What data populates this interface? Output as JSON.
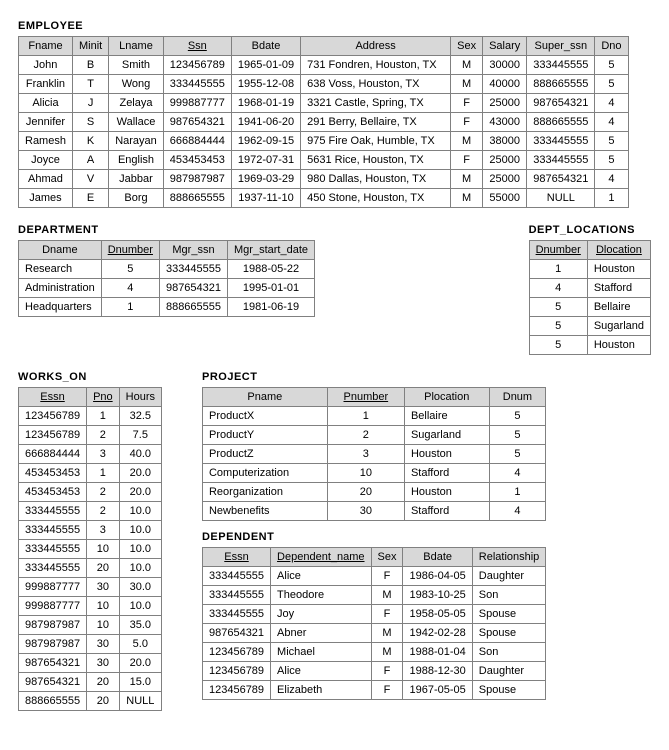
{
  "style": {
    "background": "#ffffff",
    "header_bg": "#d8d8d8",
    "border_color": "#808080",
    "text_color": "#000000",
    "font_family": "Arial, Helvetica, sans-serif",
    "font_size_pt": 11
  },
  "titles": {
    "employee": "EMPLOYEE",
    "department": "DEPARTMENT",
    "dept_locations": "DEPT_LOCATIONS",
    "works_on": "WORKS_ON",
    "project": "PROJECT",
    "dependent": "DEPENDENT"
  },
  "employee": {
    "columns": [
      "Fname",
      "Minit",
      "Lname",
      "Ssn",
      "Bdate",
      "Address",
      "Sex",
      "Salary",
      "Super_ssn",
      "Dno"
    ],
    "pk_cols": [
      3
    ],
    "rows": [
      [
        "John",
        "B",
        "Smith",
        "123456789",
        "1965-01-09",
        "731 Fondren, Houston, TX",
        "M",
        "30000",
        "333445555",
        "5"
      ],
      [
        "Franklin",
        "T",
        "Wong",
        "333445555",
        "1955-12-08",
        "638 Voss, Houston, TX",
        "M",
        "40000",
        "888665555",
        "5"
      ],
      [
        "Alicia",
        "J",
        "Zelaya",
        "999887777",
        "1968-01-19",
        "3321 Castle, Spring, TX",
        "F",
        "25000",
        "987654321",
        "4"
      ],
      [
        "Jennifer",
        "S",
        "Wallace",
        "987654321",
        "1941-06-20",
        "291 Berry, Bellaire, TX",
        "F",
        "43000",
        "888665555",
        "4"
      ],
      [
        "Ramesh",
        "K",
        "Narayan",
        "666884444",
        "1962-09-15",
        "975 Fire Oak, Humble, TX",
        "M",
        "38000",
        "333445555",
        "5"
      ],
      [
        "Joyce",
        "A",
        "English",
        "453453453",
        "1972-07-31",
        "5631 Rice, Houston, TX",
        "F",
        "25000",
        "333445555",
        "5"
      ],
      [
        "Ahmad",
        "V",
        "Jabbar",
        "987987987",
        "1969-03-29",
        "980 Dallas, Houston, TX",
        "M",
        "25000",
        "987654321",
        "4"
      ],
      [
        "James",
        "E",
        "Borg",
        "888665555",
        "1937-11-10",
        "450 Stone, Houston, TX",
        "M",
        "55000",
        "NULL",
        "1"
      ]
    ],
    "left_cols": [
      5
    ]
  },
  "department": {
    "columns": [
      "Dname",
      "Dnumber",
      "Mgr_ssn",
      "Mgr_start_date"
    ],
    "pk_cols": [
      1
    ],
    "rows": [
      [
        "Research",
        "5",
        "333445555",
        "1988-05-22"
      ],
      [
        "Administration",
        "4",
        "987654321",
        "1995-01-01"
      ],
      [
        "Headquarters",
        "1",
        "888665555",
        "1981-06-19"
      ]
    ],
    "left_cols": [
      0
    ]
  },
  "dept_locations": {
    "columns": [
      "Dnumber",
      "Dlocation"
    ],
    "pk_cols": [
      0,
      1
    ],
    "rows": [
      [
        "1",
        "Houston"
      ],
      [
        "4",
        "Stafford"
      ],
      [
        "5",
        "Bellaire"
      ],
      [
        "5",
        "Sugarland"
      ],
      [
        "5",
        "Houston"
      ]
    ],
    "left_cols": [
      1
    ]
  },
  "works_on": {
    "columns": [
      "Essn",
      "Pno",
      "Hours"
    ],
    "pk_cols": [
      0,
      1
    ],
    "rows": [
      [
        "123456789",
        "1",
        "32.5"
      ],
      [
        "123456789",
        "2",
        "7.5"
      ],
      [
        "666884444",
        "3",
        "40.0"
      ],
      [
        "453453453",
        "1",
        "20.0"
      ],
      [
        "453453453",
        "2",
        "20.0"
      ],
      [
        "333445555",
        "2",
        "10.0"
      ],
      [
        "333445555",
        "3",
        "10.0"
      ],
      [
        "333445555",
        "10",
        "10.0"
      ],
      [
        "333445555",
        "20",
        "10.0"
      ],
      [
        "999887777",
        "30",
        "30.0"
      ],
      [
        "999887777",
        "10",
        "10.0"
      ],
      [
        "987987987",
        "10",
        "35.0"
      ],
      [
        "987987987",
        "30",
        "5.0"
      ],
      [
        "987654321",
        "30",
        "20.0"
      ],
      [
        "987654321",
        "20",
        "15.0"
      ],
      [
        "888665555",
        "20",
        "NULL"
      ]
    ]
  },
  "project": {
    "columns": [
      "Pname",
      "Pnumber",
      "Plocation",
      "Dnum"
    ],
    "pk_cols": [
      1
    ],
    "rows": [
      [
        "ProductX",
        "1",
        "Bellaire",
        "5"
      ],
      [
        "ProductY",
        "2",
        "Sugarland",
        "5"
      ],
      [
        "ProductZ",
        "3",
        "Houston",
        "5"
      ],
      [
        "Computerization",
        "10",
        "Stafford",
        "4"
      ],
      [
        "Reorganization",
        "20",
        "Houston",
        "1"
      ],
      [
        "Newbenefits",
        "30",
        "Stafford",
        "4"
      ]
    ],
    "left_cols": [
      0,
      2
    ]
  },
  "dependent": {
    "columns": [
      "Essn",
      "Dependent_name",
      "Sex",
      "Bdate",
      "Relationship"
    ],
    "pk_cols": [
      0,
      1
    ],
    "rows": [
      [
        "333445555",
        "Alice",
        "F",
        "1986-04-05",
        "Daughter"
      ],
      [
        "333445555",
        "Theodore",
        "M",
        "1983-10-25",
        "Son"
      ],
      [
        "333445555",
        "Joy",
        "F",
        "1958-05-05",
        "Spouse"
      ],
      [
        "987654321",
        "Abner",
        "M",
        "1942-02-28",
        "Spouse"
      ],
      [
        "123456789",
        "Michael",
        "M",
        "1988-01-04",
        "Son"
      ],
      [
        "123456789",
        "Alice",
        "F",
        "1988-12-30",
        "Daughter"
      ],
      [
        "123456789",
        "Elizabeth",
        "F",
        "1967-05-05",
        "Spouse"
      ]
    ],
    "left_cols": [
      1,
      4
    ]
  }
}
